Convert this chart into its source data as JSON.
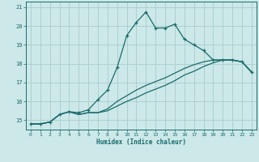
{
  "xlabel": "Humidex (Indice chaleur)",
  "background_color": "#cce8e8",
  "grid_color": "#aacccc",
  "line_color": "#1a6b6b",
  "xlim": [
    -0.5,
    23.5
  ],
  "ylim": [
    14.5,
    21.3
  ],
  "yticks": [
    15,
    16,
    17,
    18,
    19,
    20,
    21
  ],
  "xticks": [
    0,
    1,
    2,
    3,
    4,
    5,
    6,
    7,
    8,
    9,
    10,
    11,
    12,
    13,
    14,
    15,
    16,
    17,
    18,
    19,
    20,
    21,
    22,
    23
  ],
  "line1_x": [
    0,
    1,
    2,
    3,
    4,
    5,
    6,
    7,
    8,
    9,
    10,
    11,
    12,
    13,
    14,
    15,
    16,
    17,
    18,
    19,
    20,
    21,
    22,
    23
  ],
  "line1_y": [
    14.8,
    14.8,
    14.9,
    15.3,
    15.45,
    15.4,
    15.55,
    16.1,
    16.6,
    17.8,
    19.5,
    20.2,
    20.75,
    19.9,
    19.9,
    20.1,
    19.3,
    19.0,
    18.7,
    18.2,
    18.2,
    18.2,
    18.1,
    17.55
  ],
  "line2_x": [
    0,
    1,
    2,
    3,
    4,
    5,
    6,
    7,
    8,
    9,
    10,
    11,
    12,
    13,
    14,
    15,
    16,
    17,
    18,
    19,
    20,
    21,
    22,
    23
  ],
  "line2_y": [
    14.8,
    14.8,
    14.9,
    15.3,
    15.45,
    15.3,
    15.4,
    15.4,
    15.5,
    15.75,
    16.0,
    16.2,
    16.45,
    16.65,
    16.85,
    17.1,
    17.4,
    17.6,
    17.85,
    18.05,
    18.2,
    18.2,
    18.1,
    17.55
  ],
  "line3_x": [
    0,
    1,
    2,
    3,
    4,
    5,
    6,
    7,
    8,
    9,
    10,
    11,
    12,
    13,
    14,
    15,
    16,
    17,
    18,
    19,
    20,
    21,
    22,
    23
  ],
  "line3_y": [
    14.8,
    14.8,
    14.9,
    15.3,
    15.45,
    15.3,
    15.4,
    15.4,
    15.6,
    16.0,
    16.3,
    16.6,
    16.85,
    17.05,
    17.25,
    17.5,
    17.75,
    17.95,
    18.1,
    18.2,
    18.2,
    18.2,
    18.1,
    17.55
  ]
}
